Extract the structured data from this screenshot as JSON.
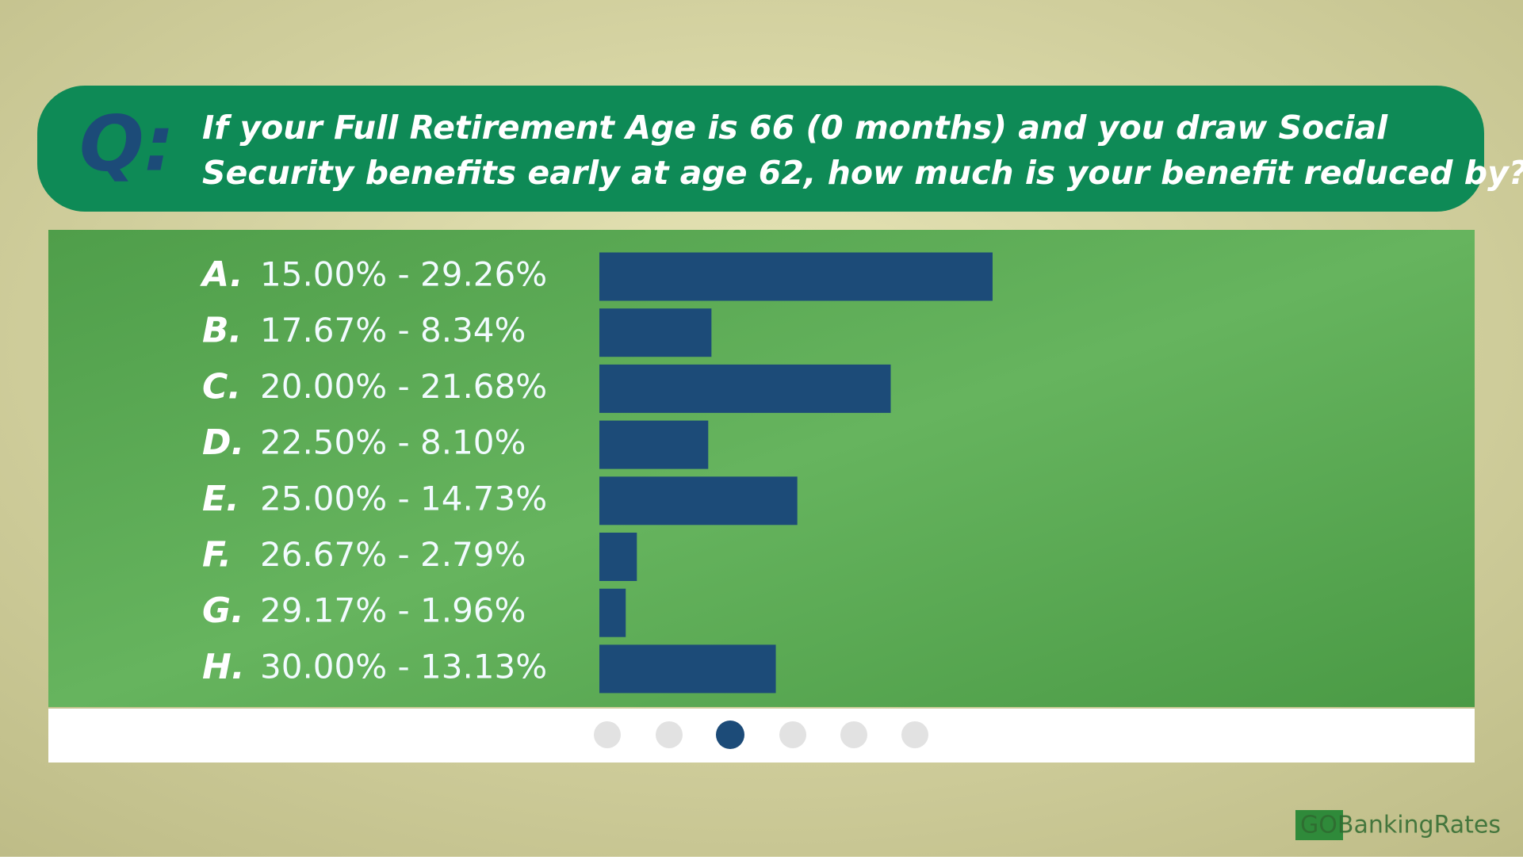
{
  "chart_data": {
    "type": "bar",
    "orientation": "horizontal",
    "question_marker": "Q:",
    "title_lines": [
      "If your Full Retirement Age is 66 (0 months) and you draw Social",
      "Security benefits early at age 62, how much is your benefit reduced by?"
    ],
    "letters": [
      "A.",
      "B.",
      "C.",
      "D.",
      "E.",
      "F.",
      "G.",
      "H."
    ],
    "categories": [
      "15.00% - 29.26%",
      "17.67% - 8.34%",
      "20.00% - 21.68%",
      "22.50% - 8.10%",
      "25.00% - 14.73%",
      "26.67% - 2.79%",
      "29.17% - 1.96%",
      "30.00% - 13.13%"
    ],
    "values": [
      29.26,
      8.34,
      21.68,
      8.1,
      14.73,
      2.79,
      1.96,
      13.13
    ],
    "color": "#1c4b78",
    "logo": "GOBankingRates"
  }
}
